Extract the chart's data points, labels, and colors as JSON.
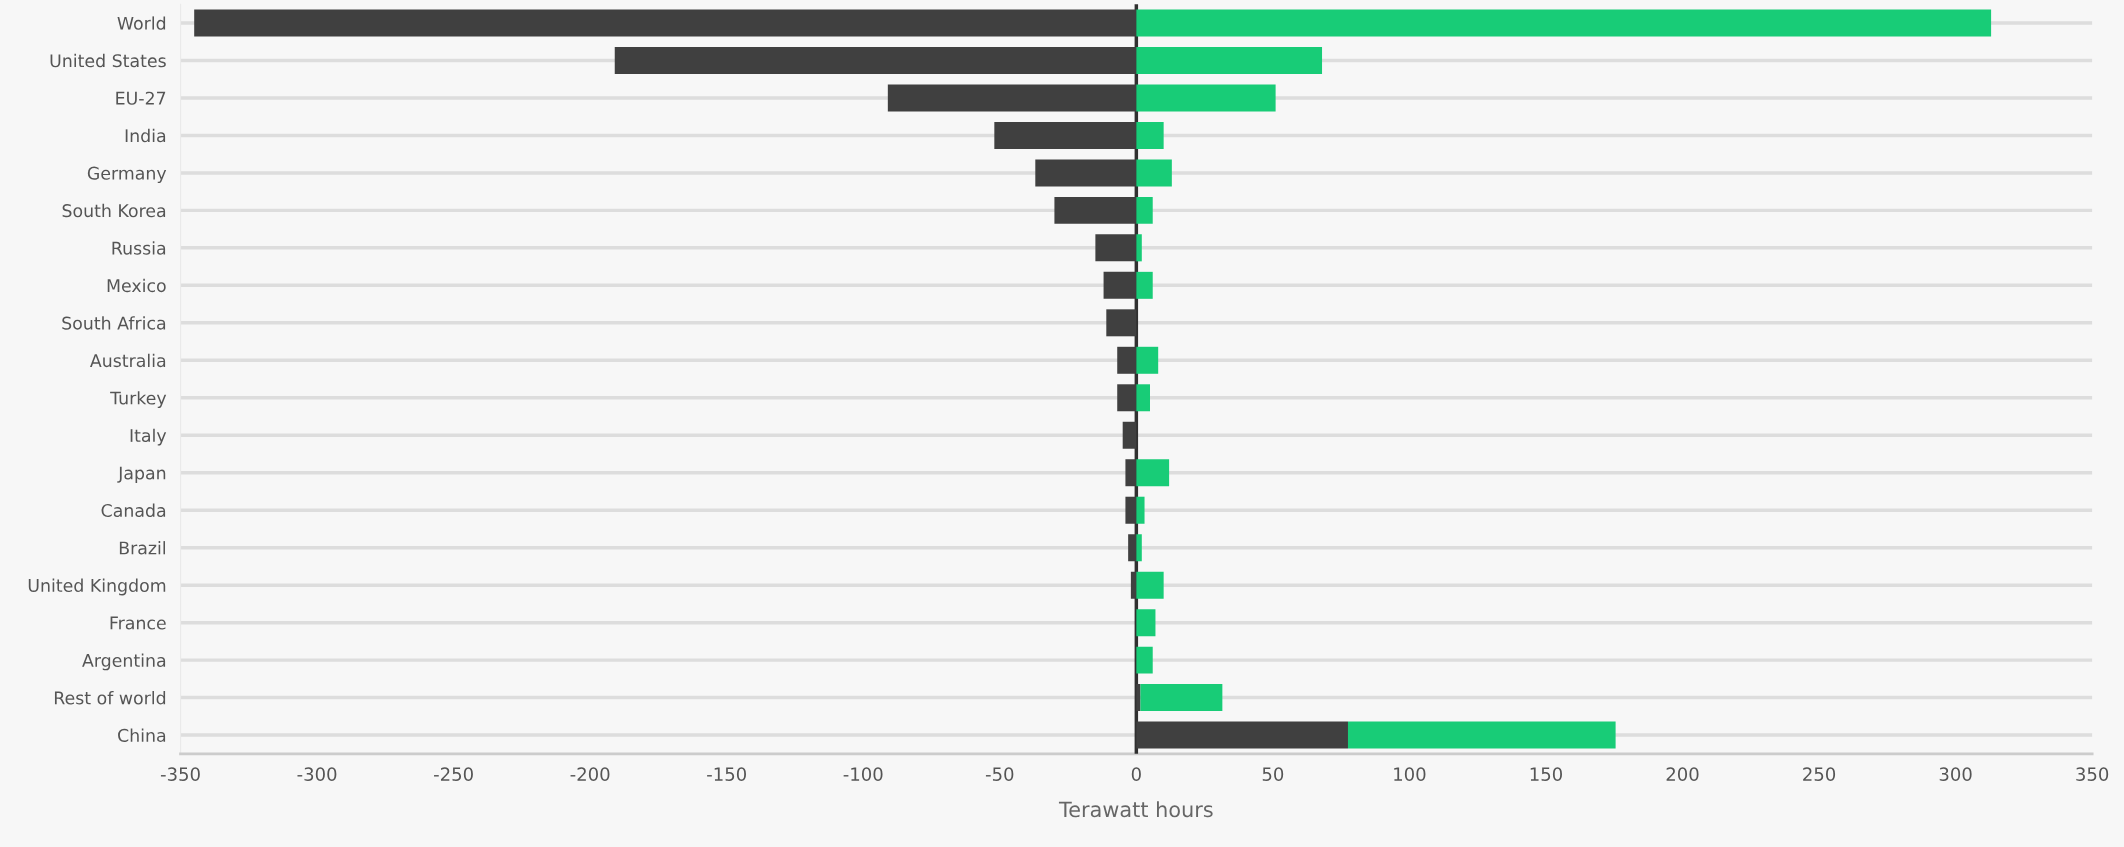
{
  "chart_data": {
    "type": "bar",
    "orientation": "horizontal",
    "stacked": true,
    "xlabel": "Terawatt hours",
    "categories": [
      "World",
      "United States",
      "EU-27",
      "India",
      "Germany",
      "South Korea",
      "Russia",
      "Mexico",
      "South Africa",
      "Australia",
      "Turkey",
      "Italy",
      "Japan",
      "Canada",
      "Brazil",
      "United Kingdom",
      "France",
      "Argentina",
      "Rest of world",
      "China"
    ],
    "series": [
      {
        "color": "#404040",
        "values": [
          -345,
          -191,
          -91,
          -52,
          -37,
          -30,
          -15,
          -12,
          -11,
          -7,
          -7,
          -5,
          -4,
          -4,
          -3,
          -2,
          null,
          null,
          1.5,
          77.5
        ]
      },
      {
        "color": "#18cc77",
        "values": [
          313,
          68,
          51,
          10,
          13,
          6,
          2,
          6,
          null,
          8,
          5,
          null,
          12,
          3,
          2,
          10,
          7,
          6,
          30,
          98
        ]
      }
    ],
    "xlim": [
      -350,
      350
    ],
    "xticks": [
      -350,
      -300,
      -250,
      -200,
      -150,
      -100,
      -50,
      0,
      50,
      100,
      150,
      200,
      250,
      300,
      350
    ],
    "grid": "y",
    "ref_lines": [
      {
        "axis": "x",
        "value": 0,
        "color": "#303030"
      }
    ]
  }
}
